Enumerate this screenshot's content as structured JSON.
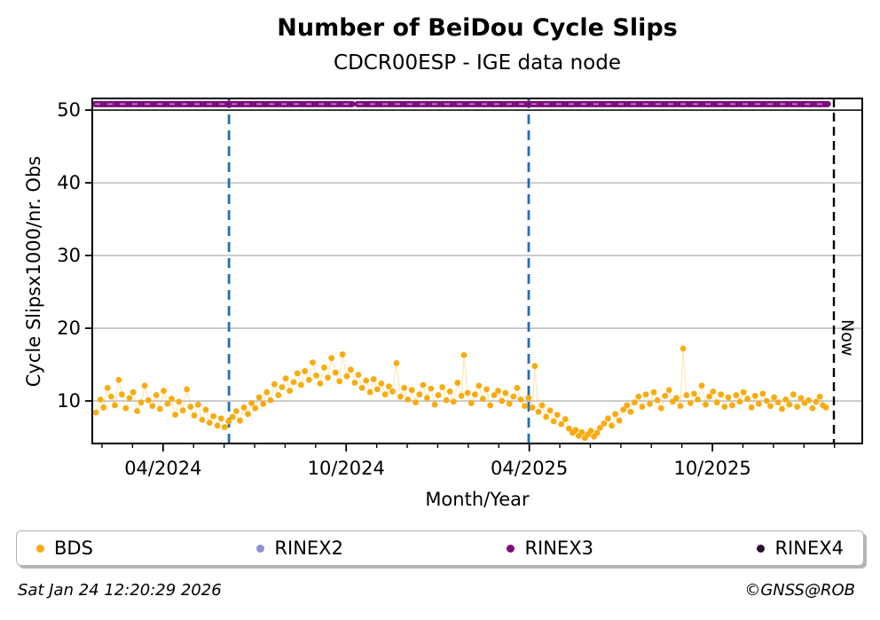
{
  "header": {
    "title": "Number of BeiDou Cycle Slips",
    "subtitle": "CDCR00ESP - IGE data node"
  },
  "footer": {
    "timestamp": "Sat Jan 24 12:20:29 2026",
    "credit": "©GNSS@ROB"
  },
  "chart_data": {
    "type": "scatter",
    "title": "Number of BeiDou Cycle Slips",
    "subtitle": "CDCR00ESP - IGE data node",
    "xlabel": "Month/Year",
    "ylabel": "Cycle Slipsx1000/nr. Obs",
    "x_unit": "months since 2024-01-01",
    "xlim": [
      0.68,
      25.91
    ],
    "ylim": [
      4.15,
      51.6
    ],
    "grid": "horizontal-only",
    "grid_color": "#b3b3b3",
    "background": "#ffffff",
    "yticks": [
      10,
      20,
      30,
      40,
      50
    ],
    "xticks_major": [
      {
        "m": 3,
        "label": "04/2024"
      },
      {
        "m": 9,
        "label": "10/2024"
      },
      {
        "m": 15,
        "label": "04/2025"
      },
      {
        "m": 21,
        "label": "10/2025"
      }
    ],
    "xticks_minor_months": [
      1,
      2,
      3,
      4,
      5,
      6,
      7,
      8,
      9,
      10,
      11,
      12,
      13,
      14,
      15,
      16,
      17,
      18,
      19,
      20,
      21,
      22,
      23,
      24,
      25
    ],
    "hline": {
      "value": 50,
      "color": "#000000",
      "width": 1.6
    },
    "vlines": [
      {
        "m": 5.16,
        "color": "#1f6fb6",
        "style": "dashed",
        "name": "event-line-jun-2024"
      },
      {
        "m": 14.98,
        "color": "#1f6fb6",
        "style": "dashed",
        "name": "event-line-apr-2025"
      }
    ],
    "now_line": {
      "m": 24.98,
      "label": "Now",
      "color": "#000000",
      "style": "dashed"
    },
    "legend_position": "bottom",
    "legend": {
      "entries": [
        {
          "label": "BDS",
          "color": "#f9ab0e"
        },
        {
          "label": "RINEX2",
          "color": "#9090d0"
        },
        {
          "label": "RINEX3",
          "color": "#7e0c7c"
        },
        {
          "label": "RINEX4",
          "color": "#2a1133"
        }
      ]
    },
    "series": [
      {
        "name": "BDS",
        "type": "scatter",
        "color": "#f9ab0e",
        "connector_color": "rgba(251,173,16,0.30)",
        "points": [
          [
            0.8,
            8.4
          ],
          [
            0.95,
            10.2
          ],
          [
            1.05,
            9.1
          ],
          [
            1.18,
            11.8
          ],
          [
            1.3,
            10.6
          ],
          [
            1.42,
            9.4
          ],
          [
            1.55,
            12.9
          ],
          [
            1.65,
            10.9
          ],
          [
            1.78,
            9.0
          ],
          [
            1.9,
            10.4
          ],
          [
            2.02,
            11.2
          ],
          [
            2.15,
            8.6
          ],
          [
            2.28,
            9.8
          ],
          [
            2.4,
            12.1
          ],
          [
            2.52,
            10.1
          ],
          [
            2.65,
            9.3
          ],
          [
            2.78,
            10.8
          ],
          [
            2.9,
            8.9
          ],
          [
            3.02,
            11.4
          ],
          [
            3.15,
            9.6
          ],
          [
            3.28,
            10.3
          ],
          [
            3.4,
            8.1
          ],
          [
            3.52,
            9.9
          ],
          [
            3.65,
            8.7
          ],
          [
            3.78,
            11.6
          ],
          [
            3.9,
            9.2
          ],
          [
            4.02,
            8.0
          ],
          [
            4.15,
            9.5
          ],
          [
            4.28,
            7.4
          ],
          [
            4.4,
            8.8
          ],
          [
            4.52,
            7.0
          ],
          [
            4.65,
            7.9
          ],
          [
            4.78,
            6.6
          ],
          [
            4.9,
            7.6
          ],
          [
            5.02,
            6.4
          ],
          [
            5.15,
            7.2
          ],
          [
            5.28,
            7.8
          ],
          [
            5.4,
            8.6
          ],
          [
            5.52,
            7.3
          ],
          [
            5.65,
            9.1
          ],
          [
            5.78,
            8.2
          ],
          [
            5.9,
            9.7
          ],
          [
            6.02,
            9.0
          ],
          [
            6.15,
            10.5
          ],
          [
            6.28,
            9.6
          ],
          [
            6.4,
            11.2
          ],
          [
            6.52,
            10.1
          ],
          [
            6.65,
            12.3
          ],
          [
            6.78,
            10.8
          ],
          [
            6.9,
            11.9
          ],
          [
            7.02,
            13.1
          ],
          [
            7.15,
            11.4
          ],
          [
            7.28,
            12.6
          ],
          [
            7.4,
            13.8
          ],
          [
            7.52,
            12.2
          ],
          [
            7.65,
            14.1
          ],
          [
            7.78,
            12.9
          ],
          [
            7.9,
            15.3
          ],
          [
            8.02,
            13.5
          ],
          [
            8.15,
            12.4
          ],
          [
            8.28,
            14.6
          ],
          [
            8.4,
            13.2
          ],
          [
            8.52,
            15.9
          ],
          [
            8.65,
            13.9
          ],
          [
            8.78,
            12.7
          ],
          [
            8.88,
            16.4
          ],
          [
            9.02,
            13.4
          ],
          [
            9.15,
            14.3
          ],
          [
            9.28,
            12.5
          ],
          [
            9.4,
            13.6
          ],
          [
            9.52,
            11.8
          ],
          [
            9.65,
            12.8
          ],
          [
            9.78,
            11.2
          ],
          [
            9.9,
            13.0
          ],
          [
            10.02,
            11.6
          ],
          [
            10.15,
            12.4
          ],
          [
            10.28,
            10.9
          ],
          [
            10.4,
            12.0
          ],
          [
            10.52,
            11.3
          ],
          [
            10.65,
            15.2
          ],
          [
            10.78,
            10.6
          ],
          [
            10.9,
            11.8
          ],
          [
            11.02,
            10.2
          ],
          [
            11.15,
            11.5
          ],
          [
            11.28,
            9.8
          ],
          [
            11.4,
            10.9
          ],
          [
            11.52,
            12.2
          ],
          [
            11.65,
            10.4
          ],
          [
            11.78,
            11.7
          ],
          [
            11.9,
            9.5
          ],
          [
            12.02,
            10.8
          ],
          [
            12.15,
            11.9
          ],
          [
            12.28,
            10.1
          ],
          [
            12.4,
            11.3
          ],
          [
            12.52,
            9.9
          ],
          [
            12.65,
            12.5
          ],
          [
            12.78,
            10.7
          ],
          [
            12.86,
            16.3
          ],
          [
            12.98,
            11.1
          ],
          [
            13.1,
            9.7
          ],
          [
            13.22,
            10.9
          ],
          [
            13.35,
            12.1
          ],
          [
            13.48,
            10.3
          ],
          [
            13.6,
            11.6
          ],
          [
            13.72,
            9.4
          ],
          [
            13.85,
            10.8
          ],
          [
            13.98,
            11.4
          ],
          [
            14.1,
            10.0
          ],
          [
            14.22,
            11.1
          ],
          [
            14.35,
            9.6
          ],
          [
            14.48,
            10.6
          ],
          [
            14.6,
            11.8
          ],
          [
            14.72,
            10.2
          ],
          [
            14.85,
            9.3
          ],
          [
            14.98,
            10.4
          ],
          [
            15.1,
            9.1
          ],
          [
            15.18,
            14.8
          ],
          [
            15.3,
            8.5
          ],
          [
            15.42,
            9.4
          ],
          [
            15.55,
            7.8
          ],
          [
            15.68,
            8.7
          ],
          [
            15.8,
            7.2
          ],
          [
            15.92,
            8.1
          ],
          [
            16.05,
            6.8
          ],
          [
            16.18,
            7.5
          ],
          [
            16.3,
            6.2
          ],
          [
            16.42,
            5.6
          ],
          [
            16.52,
            6.0
          ],
          [
            16.62,
            5.2
          ],
          [
            16.72,
            5.7
          ],
          [
            16.82,
            4.9
          ],
          [
            16.92,
            5.4
          ],
          [
            17.02,
            5.9
          ],
          [
            17.12,
            5.1
          ],
          [
            17.22,
            5.6
          ],
          [
            17.32,
            6.3
          ],
          [
            17.45,
            6.9
          ],
          [
            17.58,
            7.6
          ],
          [
            17.7,
            6.6
          ],
          [
            17.82,
            8.2
          ],
          [
            17.95,
            7.3
          ],
          [
            18.08,
            8.8
          ],
          [
            18.2,
            9.4
          ],
          [
            18.32,
            8.5
          ],
          [
            18.45,
            9.8
          ],
          [
            18.58,
            10.6
          ],
          [
            18.7,
            9.2
          ],
          [
            18.82,
            10.9
          ],
          [
            18.95,
            9.6
          ],
          [
            19.08,
            11.2
          ],
          [
            19.2,
            10.1
          ],
          [
            19.32,
            9.0
          ],
          [
            19.45,
            10.7
          ],
          [
            19.58,
            11.5
          ],
          [
            19.7,
            9.9
          ],
          [
            19.82,
            10.4
          ],
          [
            19.95,
            9.3
          ],
          [
            20.04,
            17.2
          ],
          [
            20.15,
            10.8
          ],
          [
            20.28,
            9.7
          ],
          [
            20.4,
            11.0
          ],
          [
            20.52,
            10.2
          ],
          [
            20.65,
            12.1
          ],
          [
            20.78,
            9.5
          ],
          [
            20.9,
            10.6
          ],
          [
            21.02,
            11.3
          ],
          [
            21.15,
            9.8
          ],
          [
            21.28,
            10.9
          ],
          [
            21.4,
            9.2
          ],
          [
            21.52,
            10.5
          ],
          [
            21.65,
            9.4
          ],
          [
            21.78,
            10.8
          ],
          [
            21.9,
            9.9
          ],
          [
            22.02,
            11.2
          ],
          [
            22.15,
            10.3
          ],
          [
            22.28,
            9.1
          ],
          [
            22.4,
            10.7
          ],
          [
            22.52,
            9.6
          ],
          [
            22.65,
            11.0
          ],
          [
            22.78,
            10.0
          ],
          [
            22.9,
            9.3
          ],
          [
            23.02,
            10.5
          ],
          [
            23.15,
            9.8
          ],
          [
            23.28,
            8.9
          ],
          [
            23.4,
            10.2
          ],
          [
            23.52,
            9.5
          ],
          [
            23.65,
            10.9
          ],
          [
            23.78,
            9.2
          ],
          [
            23.9,
            10.4
          ],
          [
            24.02,
            9.7
          ],
          [
            24.15,
            10.1
          ],
          [
            24.28,
            9.0
          ],
          [
            24.4,
            9.9
          ],
          [
            24.52,
            10.6
          ],
          [
            24.62,
            9.4
          ],
          [
            24.72,
            9.1
          ]
        ]
      },
      {
        "name": "RINEX2",
        "type": "scatter",
        "color": "#9090d0",
        "points": []
      },
      {
        "name": "RINEX3",
        "type": "band",
        "color": "#7e0c7c",
        "value": 50.83,
        "segments": [
          [
            0.77,
            9.2
          ],
          [
            9.37,
            24.78
          ]
        ]
      },
      {
        "name": "RINEX4",
        "type": "scatter",
        "color": "#2a1133",
        "points": []
      }
    ]
  }
}
